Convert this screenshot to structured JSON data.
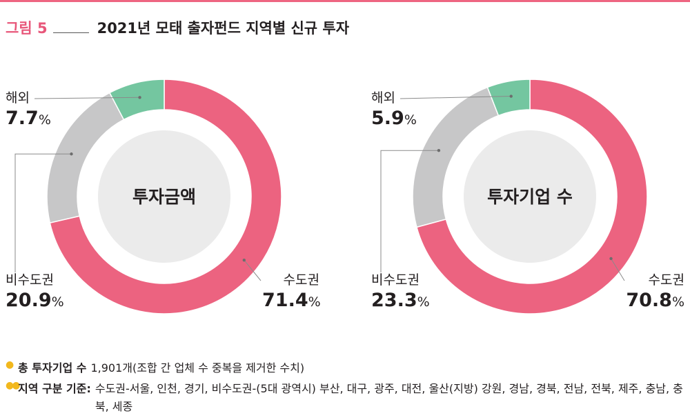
{
  "header": {
    "fig_label": "그림 5",
    "title": "2021년 모태 출자펀드 지역별 신규 투자"
  },
  "colors": {
    "capital": "#ec6380",
    "noncapital": "#c7c7c8",
    "overseas": "#74c6a0",
    "center": "#ebebeb",
    "accent": "#e8577a",
    "bullet": "#f2b81d"
  },
  "chart_data": [
    {
      "type": "pie",
      "center_label": "투자금액",
      "slices": [
        {
          "name": "수도권",
          "value": 71.4,
          "value_text": "71.4",
          "unit": "%"
        },
        {
          "name": "비수도권",
          "value": 20.9,
          "value_text": "20.9",
          "unit": "%"
        },
        {
          "name": "해외",
          "value": 7.7,
          "value_text": "7.7",
          "unit": "%"
        }
      ]
    },
    {
      "type": "pie",
      "center_label": "투자기업 수",
      "slices": [
        {
          "name": "수도권",
          "value": 70.8,
          "value_text": "70.8",
          "unit": "%"
        },
        {
          "name": "비수도권",
          "value": 23.3,
          "value_text": "23.3",
          "unit": "%"
        },
        {
          "name": "해외",
          "value": 5.9,
          "value_text": "5.9",
          "unit": "%"
        }
      ]
    }
  ],
  "notes": [
    {
      "bullet": "●",
      "label": "총 투자기업 수",
      "text": "1,901개(조합 간 업체 수 중복을 제거한 수치)"
    },
    {
      "bullet": "●●",
      "label": "지역 구분 기준:",
      "text": "수도권-서울, 인천, 경기, 비수도권-(5대 광역시) 부산, 대구, 광주, 대전, 울산(지방) 강원, 경남, 경북, 전남, 전북, 제주, 충남, 충북, 세종"
    }
  ]
}
